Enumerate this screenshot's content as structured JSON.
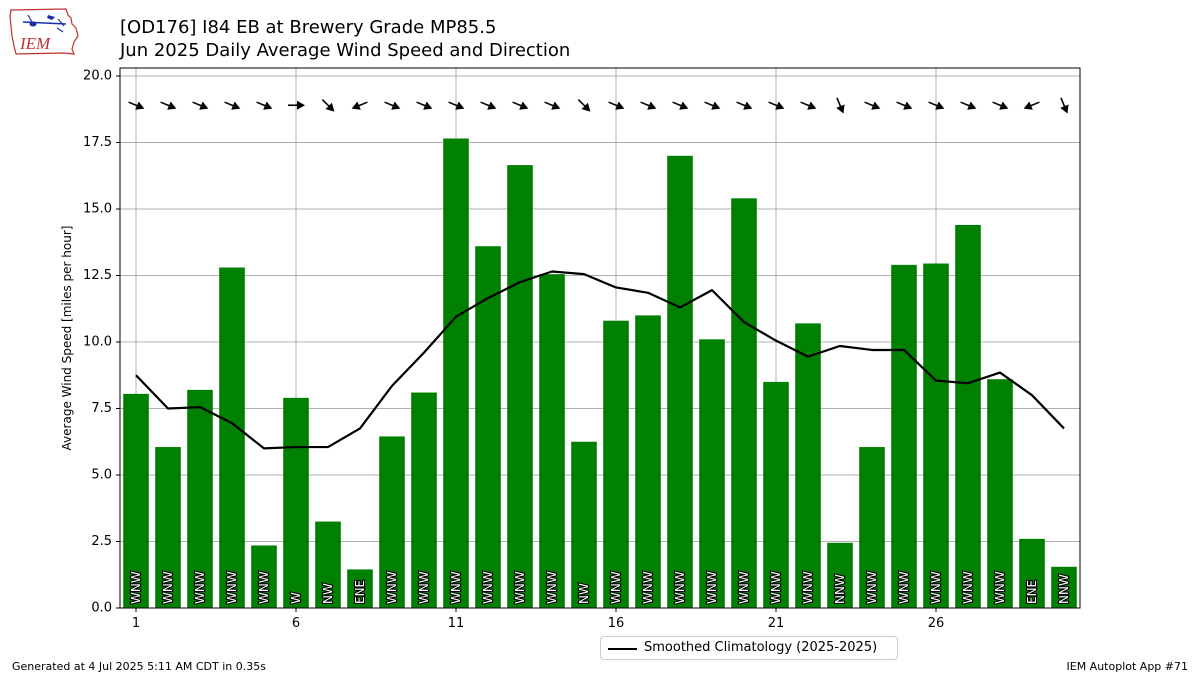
{
  "header": {
    "title_line1": "[OD176] I84 EB at Brewery Grade MP85.5",
    "title_line2": "Jun 2025 Daily Average Wind Speed and Direction",
    "logo_text": "IEM"
  },
  "footer": {
    "generated": "Generated at 4 Jul 2025 5:11 AM CDT in 0.35s",
    "app": "IEM Autoplot App #71"
  },
  "chart_data": {
    "type": "bar",
    "title": "[OD176] I84 EB at Brewery Grade MP85.5",
    "subtitle": "Jun 2025 Daily Average Wind Speed and Direction",
    "ylabel": "Average Wind Speed [miles per hour]",
    "xlabel": "",
    "xlim": [
      0.5,
      30.5
    ],
    "ylim": [
      0,
      20.3
    ],
    "xticks": [
      1,
      6,
      11,
      16,
      21,
      26
    ],
    "yticks": [
      0.0,
      2.5,
      5.0,
      7.5,
      10.0,
      12.5,
      15.0,
      17.5,
      20.0
    ],
    "grid": true,
    "bar_color": "#008000",
    "days": [
      1,
      2,
      3,
      4,
      5,
      6,
      7,
      8,
      9,
      10,
      11,
      12,
      13,
      14,
      15,
      16,
      17,
      18,
      19,
      20,
      21,
      22,
      23,
      24,
      25,
      26,
      27,
      28,
      29,
      30
    ],
    "values": [
      8.05,
      6.05,
      8.2,
      12.8,
      2.35,
      7.9,
      3.25,
      1.45,
      6.45,
      8.1,
      17.65,
      13.6,
      16.65,
      12.55,
      6.25,
      10.8,
      11.0,
      17.0,
      10.1,
      15.4,
      8.5,
      10.7,
      2.45,
      6.05,
      12.9,
      12.95,
      14.4,
      8.6,
      2.6,
      1.55
    ],
    "direction_labels": [
      "WNW",
      "WNW",
      "WNW",
      "WNW",
      "WNW",
      "W",
      "NW",
      "ENE",
      "WNW",
      "WNW",
      "WNW",
      "WNW",
      "WNW",
      "WNW",
      "NW",
      "WNW",
      "WNW",
      "WNW",
      "WNW",
      "WNW",
      "WNW",
      "WNW",
      "NNW",
      "WNW",
      "WNW",
      "WNW",
      "WNW",
      "WNW",
      "ENE",
      "NNW"
    ],
    "arrow_directions_deg": [
      292.5,
      292.5,
      292.5,
      292.5,
      292.5,
      270,
      315,
      67.5,
      292.5,
      292.5,
      292.5,
      292.5,
      292.5,
      292.5,
      315,
      292.5,
      292.5,
      292.5,
      292.5,
      292.5,
      292.5,
      292.5,
      337.5,
      292.5,
      292.5,
      292.5,
      292.5,
      292.5,
      67.5,
      337.5
    ],
    "arrow_y": 18.9,
    "series": [
      {
        "name": "Smoothed Climatology (2025-2025)",
        "type": "line",
        "color": "#000000",
        "x": [
          1,
          2,
          3,
          4,
          5,
          6,
          7,
          8,
          9,
          10,
          11,
          12,
          13,
          14,
          15,
          16,
          17,
          18,
          19,
          20,
          21,
          22,
          23,
          24,
          25,
          26,
          27,
          28,
          29,
          30
        ],
        "values": [
          8.75,
          7.5,
          7.55,
          6.95,
          6.0,
          6.05,
          6.05,
          6.75,
          8.35,
          9.6,
          10.95,
          11.65,
          12.25,
          12.65,
          12.55,
          12.05,
          11.85,
          11.3,
          11.95,
          10.75,
          10.05,
          9.45,
          9.85,
          9.7,
          9.7,
          8.55,
          8.45,
          8.85,
          8.0,
          6.75
        ]
      }
    ],
    "legend": {
      "position": "bottom-center",
      "entries": [
        "Smoothed Climatology (2025-2025)"
      ]
    }
  }
}
